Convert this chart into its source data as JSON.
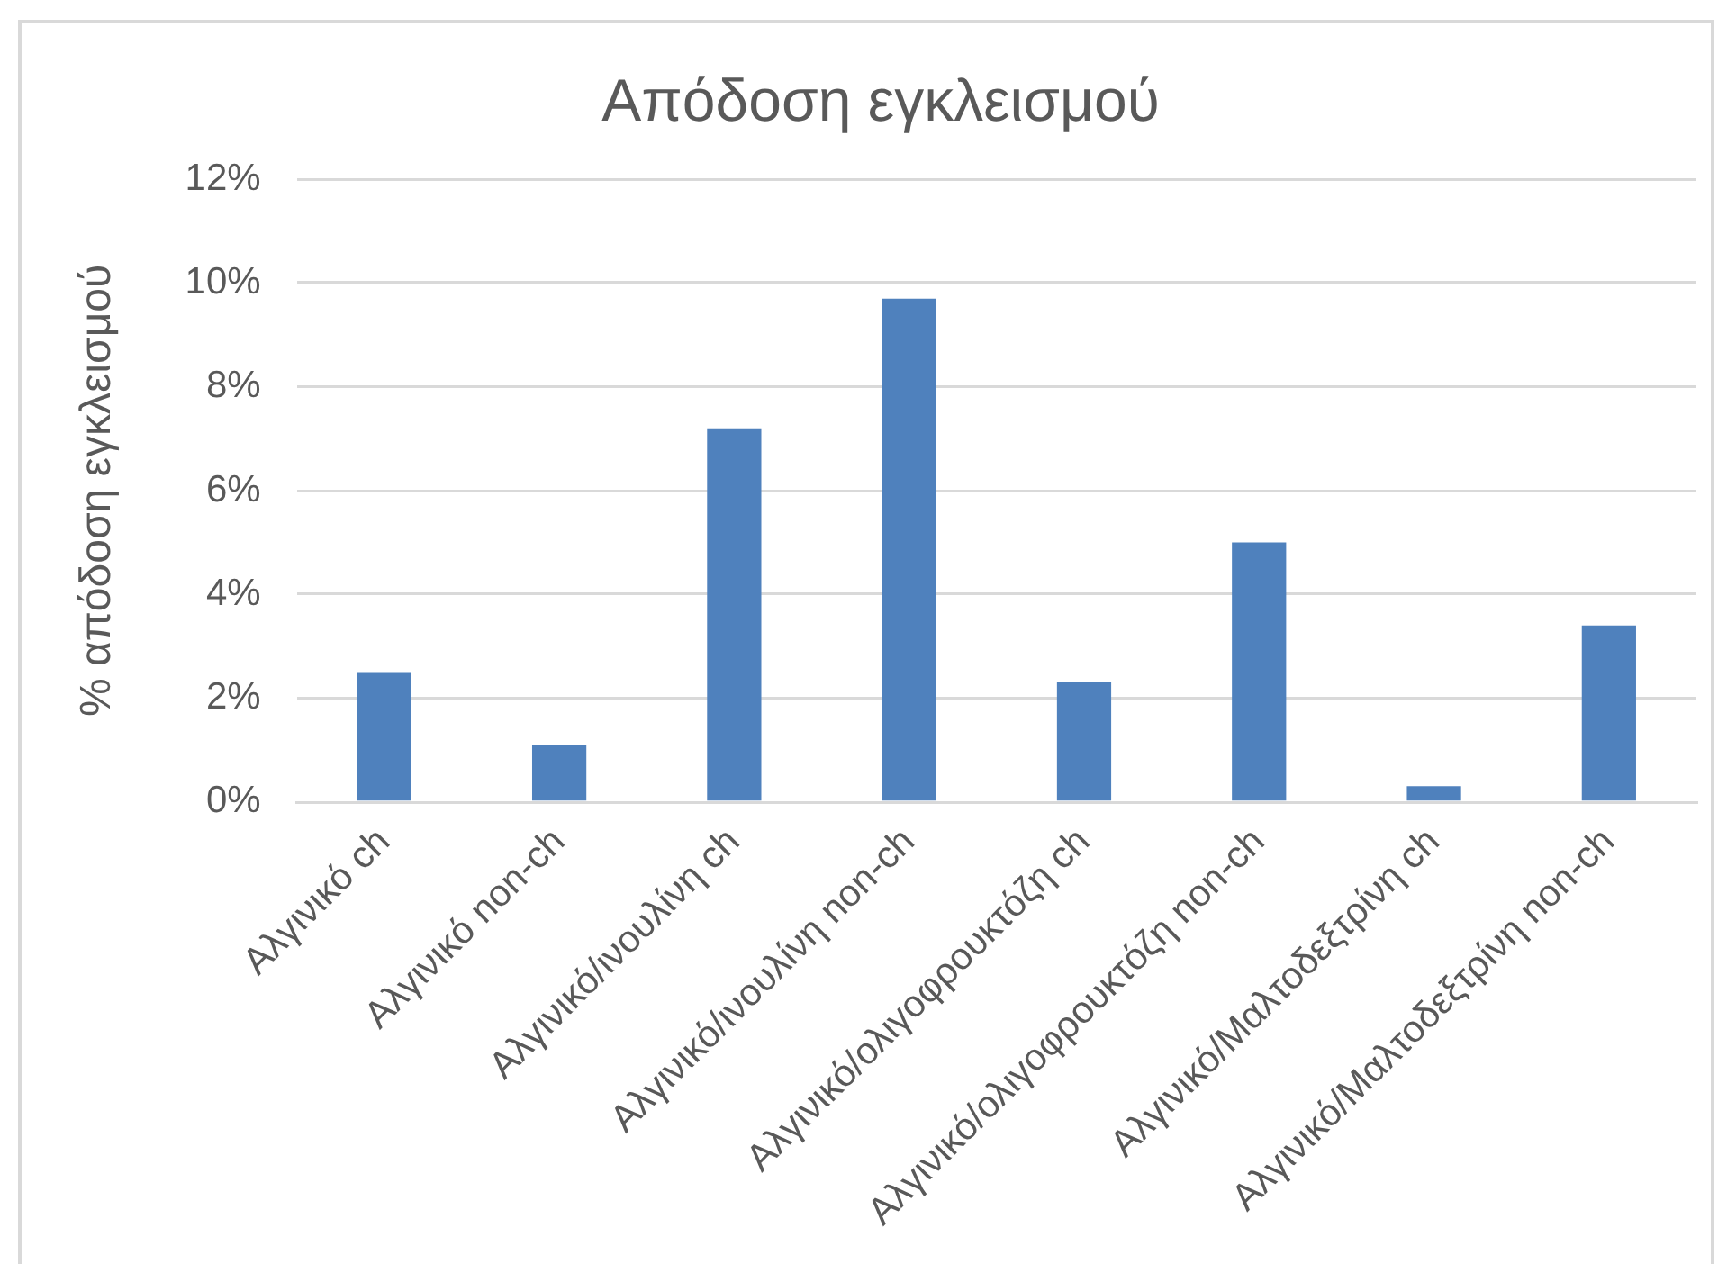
{
  "chart_data": {
    "type": "bar",
    "title": "Απόδοση εγκλεισμού",
    "ylabel": "% απόδοση εγκλεισμού",
    "categories": [
      "Αλγινικό ch",
      "Αλγινικό non-ch",
      "Αλγινικό/ινουλίνη ch",
      "Αλγινικό/ινουλίνη non-ch",
      "Αλγινικό/ολιγοφρουκτόζη ch",
      "Αλγινικό/ολιγοφρουκτόζη non-ch",
      "Αλγινικό/Μαλτοδεξτρίνη ch",
      "Αλγινικό/Μαλτοδεξτρίνη non-ch"
    ],
    "values": [
      2.5,
      1.1,
      7.2,
      9.7,
      2.3,
      5.0,
      0.3,
      3.4
    ],
    "color": "#4f81bd",
    "ylim": [
      0,
      12
    ],
    "yticks": [
      {
        "value": 0,
        "label": "0%"
      },
      {
        "value": 2,
        "label": "2%"
      },
      {
        "value": 4,
        "label": "4%"
      },
      {
        "value": 6,
        "label": "6%"
      },
      {
        "value": 8,
        "label": "8%"
      },
      {
        "value": 10,
        "label": "10%"
      },
      {
        "value": 12,
        "label": "12%"
      }
    ],
    "grid": "y"
  }
}
